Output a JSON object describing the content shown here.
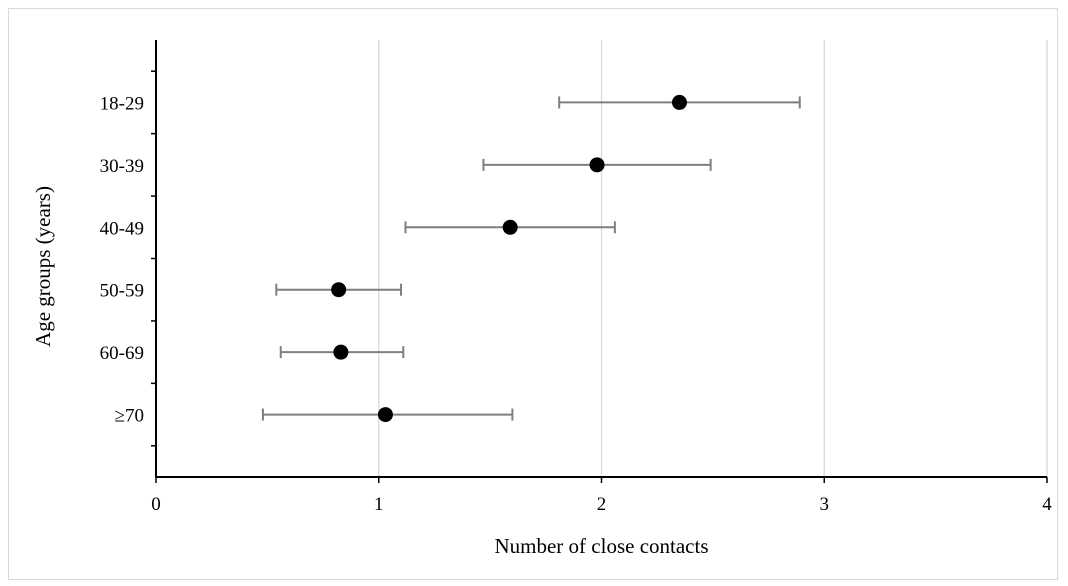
{
  "chart_data": {
    "type": "scatter",
    "xlabel": "Number of close contacts",
    "ylabel": "Age groups (years)",
    "xlim": [
      0,
      4
    ],
    "x_ticks": [
      "0",
      "1",
      "2",
      "3",
      "4"
    ],
    "x_tick_values": [
      0,
      1,
      2,
      3,
      4
    ],
    "grid": "vertical",
    "categories": [
      "18-29",
      "30-39",
      "40-49",
      "50-59",
      "60-69",
      "≥70"
    ],
    "series": [
      {
        "values": [
          2.35,
          1.98,
          1.59,
          0.82,
          0.83,
          1.03
        ],
        "error_low": [
          1.81,
          1.47,
          1.12,
          0.54,
          0.56,
          0.48
        ],
        "error_high": [
          2.89,
          2.49,
          2.06,
          1.1,
          1.11,
          1.6
        ]
      }
    ],
    "colors": {
      "marker": "#000000",
      "error_bar": "#7f7f7f",
      "grid": "#d9d9d9",
      "axis": "#000000"
    }
  }
}
